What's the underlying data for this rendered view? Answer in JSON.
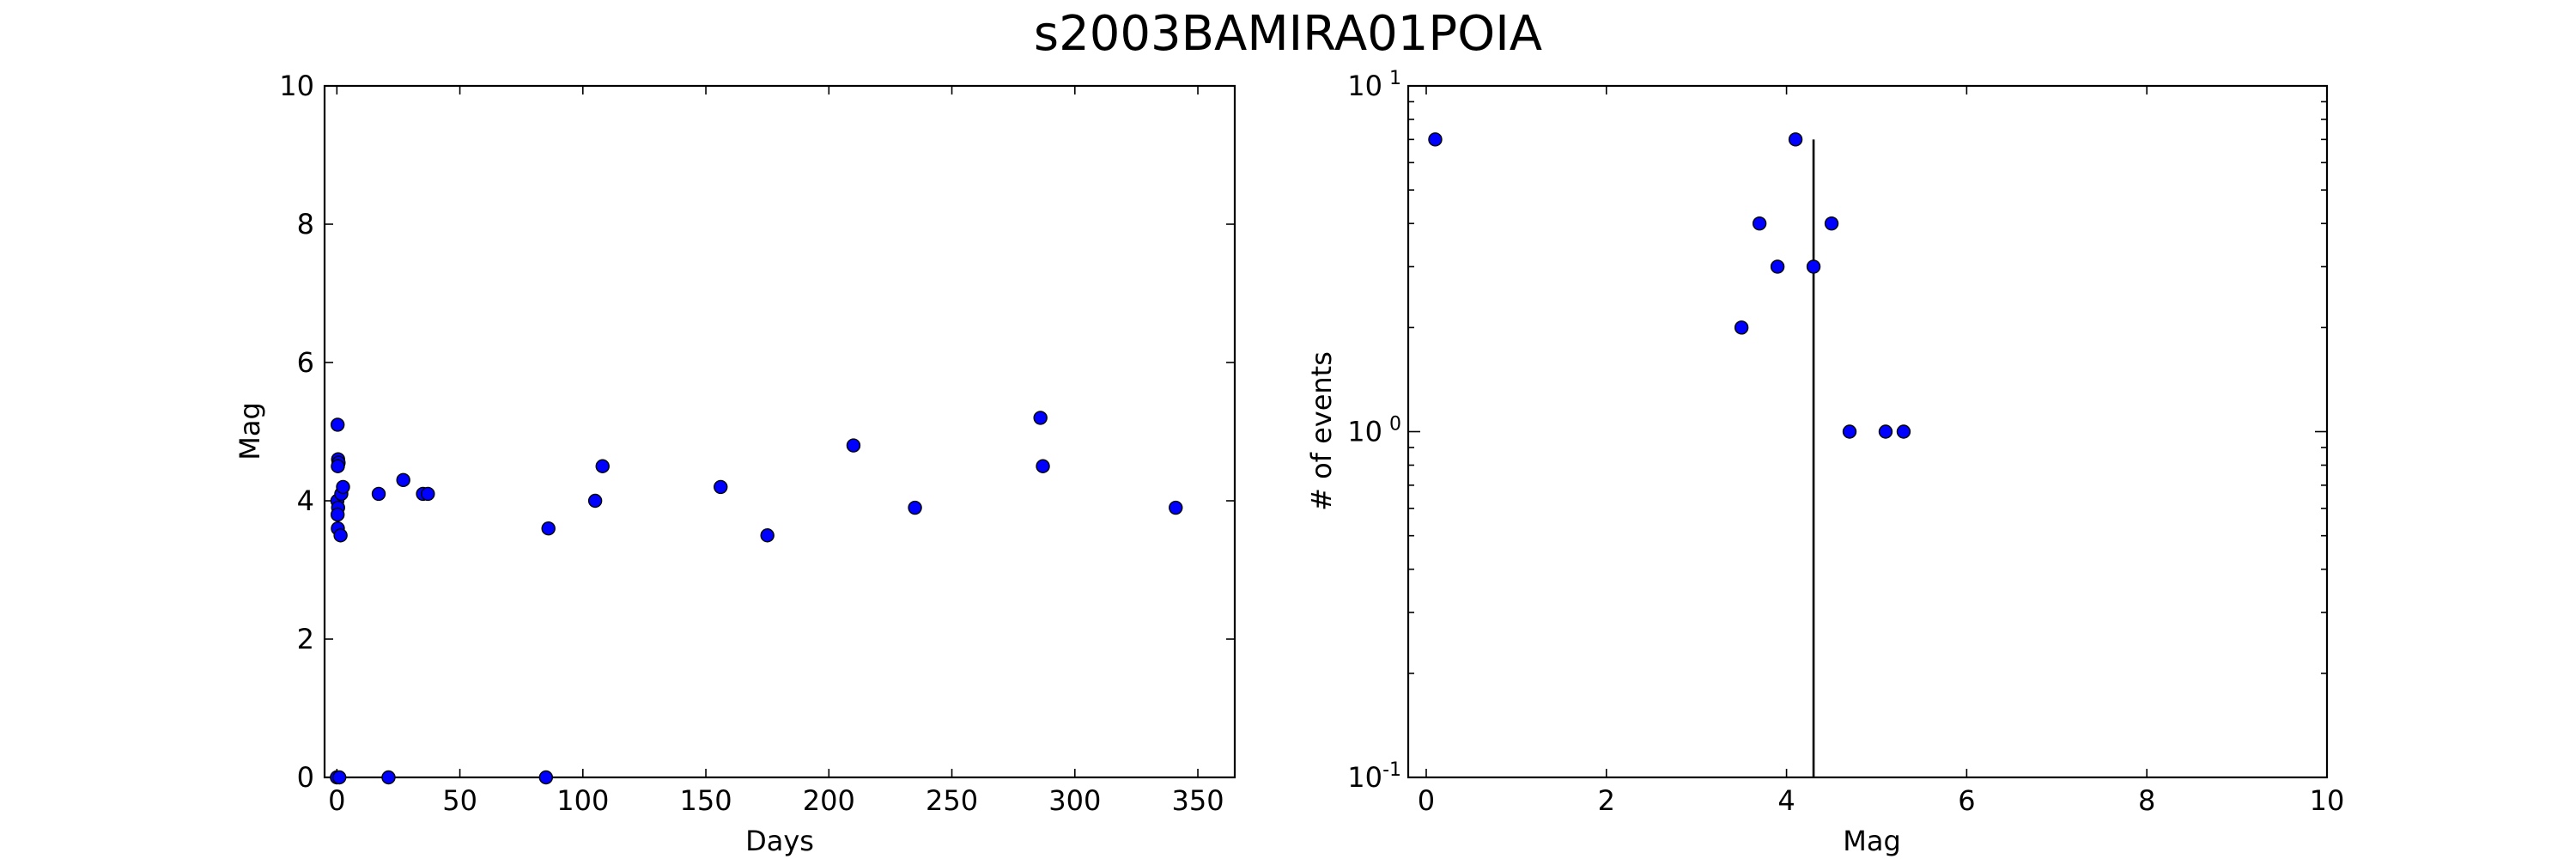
{
  "title": "s2003BAMIRA01POIA",
  "chart_data": [
    {
      "type": "scatter",
      "xlabel": "Days",
      "ylabel": "Mag",
      "xlim": [
        -5,
        365
      ],
      "ylim": [
        0,
        10
      ],
      "xticks": [
        0,
        50,
        100,
        150,
        200,
        250,
        300,
        350
      ],
      "yticks": [
        0,
        2,
        4,
        6,
        8,
        10
      ],
      "points": [
        {
          "x": 0,
          "y": 0
        },
        {
          "x": 1,
          "y": 0
        },
        {
          "x": 21,
          "y": 0
        },
        {
          "x": 85,
          "y": 0
        },
        {
          "x": 0.3,
          "y": 5.1
        },
        {
          "x": 0.5,
          "y": 4.6
        },
        {
          "x": 0.7,
          "y": 4.55
        },
        {
          "x": 0.4,
          "y": 4.5
        },
        {
          "x": 0.2,
          "y": 4.0
        },
        {
          "x": 0.5,
          "y": 3.9
        },
        {
          "x": 0.3,
          "y": 3.8
        },
        {
          "x": 0.4,
          "y": 3.6
        },
        {
          "x": 1.5,
          "y": 3.5
        },
        {
          "x": 1.8,
          "y": 4.1
        },
        {
          "x": 2.5,
          "y": 4.2
        },
        {
          "x": 17,
          "y": 4.1
        },
        {
          "x": 27,
          "y": 4.3
        },
        {
          "x": 35,
          "y": 4.1
        },
        {
          "x": 37,
          "y": 4.1
        },
        {
          "x": 86,
          "y": 3.6
        },
        {
          "x": 105,
          "y": 4.0
        },
        {
          "x": 108,
          "y": 4.5
        },
        {
          "x": 156,
          "y": 4.2
        },
        {
          "x": 175,
          "y": 3.5
        },
        {
          "x": 210,
          "y": 4.8
        },
        {
          "x": 235,
          "y": 3.9
        },
        {
          "x": 286,
          "y": 5.2
        },
        {
          "x": 287,
          "y": 4.5
        },
        {
          "x": 341,
          "y": 3.9
        }
      ],
      "color": "#0000ff"
    },
    {
      "type": "scatter",
      "xlabel": "Mag",
      "ylabel": "# of events",
      "xlim": [
        -0.2,
        10
      ],
      "ylim": [
        0.1,
        10
      ],
      "yscale": "log",
      "xticks": [
        0,
        2,
        4,
        6,
        8,
        10
      ],
      "yticks": [
        {
          "base": "10",
          "exp": "-1"
        },
        {
          "base": "10",
          "exp": "0"
        },
        {
          "base": "10",
          "exp": "1"
        }
      ],
      "points": [
        {
          "x": 0.1,
          "y": 7
        },
        {
          "x": 3.5,
          "y": 2
        },
        {
          "x": 3.7,
          "y": 4
        },
        {
          "x": 3.9,
          "y": 3
        },
        {
          "x": 4.1,
          "y": 7
        },
        {
          "x": 4.3,
          "y": 3
        },
        {
          "x": 4.5,
          "y": 4
        },
        {
          "x": 4.7,
          "y": 1
        },
        {
          "x": 5.1,
          "y": 1
        },
        {
          "x": 5.3,
          "y": 1
        }
      ],
      "vline": {
        "x": 4.3,
        "y_top": 7
      },
      "color": "#0000ff"
    }
  ]
}
